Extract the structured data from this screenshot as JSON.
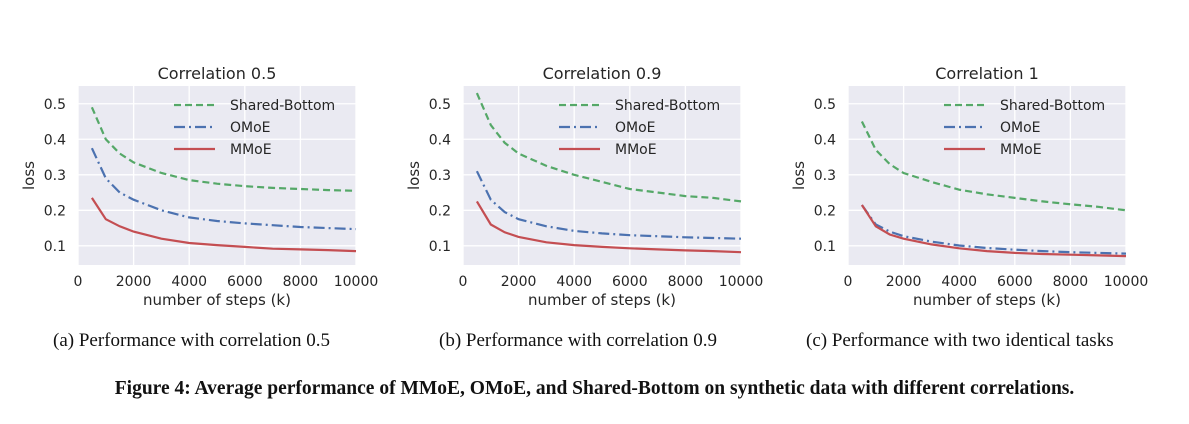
{
  "chart_data": [
    {
      "type": "line",
      "title": "Correlation 0.5",
      "xlabel": "number of steps (k)",
      "ylabel": "loss",
      "xlim": [
        0,
        10000
      ],
      "ylim": [
        0.046,
        0.55
      ],
      "xticks": [
        "0",
        "2000",
        "4000",
        "6000",
        "8000",
        "10000"
      ],
      "yticks": [
        "0.1",
        "0.2",
        "0.3",
        "0.4",
        "0.5"
      ],
      "grid": true,
      "legend": "top-right",
      "x": [
        500,
        1000,
        1500,
        2000,
        3000,
        4000,
        5000,
        6000,
        7000,
        8000,
        9000,
        10000
      ],
      "series": [
        {
          "name": "Shared-Bottom",
          "color": "#55a868",
          "style": "dashed",
          "values": [
            0.49,
            0.4,
            0.36,
            0.335,
            0.305,
            0.285,
            0.275,
            0.268,
            0.263,
            0.26,
            0.257,
            0.255
          ]
        },
        {
          "name": "OMoE",
          "color": "#4c72b0",
          "style": "dashdot",
          "values": [
            0.375,
            0.29,
            0.25,
            0.23,
            0.2,
            0.18,
            0.17,
            0.163,
            0.158,
            0.153,
            0.15,
            0.147
          ]
        },
        {
          "name": "MMoE",
          "color": "#c44e52",
          "style": "solid",
          "values": [
            0.235,
            0.175,
            0.155,
            0.14,
            0.12,
            0.108,
            0.102,
            0.097,
            0.092,
            0.09,
            0.088,
            0.085
          ]
        }
      ]
    },
    {
      "type": "line",
      "title": "Correlation 0.9",
      "xlabel": "number of steps (k)",
      "ylabel": "loss",
      "xlim": [
        0,
        10000
      ],
      "ylim": [
        0.046,
        0.55
      ],
      "xticks": [
        "0",
        "2000",
        "4000",
        "6000",
        "8000",
        "10000"
      ],
      "yticks": [
        "0.1",
        "0.2",
        "0.3",
        "0.4",
        "0.5"
      ],
      "grid": true,
      "legend": "top-right",
      "x": [
        500,
        1000,
        1500,
        2000,
        3000,
        4000,
        5000,
        6000,
        7000,
        8000,
        9000,
        10000
      ],
      "series": [
        {
          "name": "Shared-Bottom",
          "color": "#55a868",
          "style": "dashed",
          "values": [
            0.53,
            0.44,
            0.39,
            0.36,
            0.325,
            0.3,
            0.28,
            0.26,
            0.25,
            0.24,
            0.235,
            0.225
          ]
        },
        {
          "name": "OMoE",
          "color": "#4c72b0",
          "style": "dashdot",
          "values": [
            0.31,
            0.23,
            0.195,
            0.175,
            0.155,
            0.142,
            0.135,
            0.13,
            0.127,
            0.124,
            0.122,
            0.12
          ]
        },
        {
          "name": "MMoE",
          "color": "#c44e52",
          "style": "solid",
          "values": [
            0.225,
            0.16,
            0.138,
            0.125,
            0.11,
            0.102,
            0.097,
            0.093,
            0.09,
            0.087,
            0.085,
            0.082
          ]
        }
      ]
    },
    {
      "type": "line",
      "title": "Correlation 1",
      "xlabel": "number of steps (k)",
      "ylabel": "loss",
      "xlim": [
        0,
        10000
      ],
      "ylim": [
        0.046,
        0.55
      ],
      "xticks": [
        "0",
        "2000",
        "4000",
        "6000",
        "8000",
        "10000"
      ],
      "yticks": [
        "0.1",
        "0.2",
        "0.3",
        "0.4",
        "0.5"
      ],
      "grid": true,
      "legend": "top-right",
      "x": [
        500,
        1000,
        1500,
        2000,
        3000,
        4000,
        5000,
        6000,
        7000,
        8000,
        9000,
        10000
      ],
      "series": [
        {
          "name": "Shared-Bottom",
          "color": "#55a868",
          "style": "dashed",
          "values": [
            0.45,
            0.37,
            0.33,
            0.305,
            0.28,
            0.258,
            0.245,
            0.235,
            0.225,
            0.217,
            0.21,
            0.2
          ]
        },
        {
          "name": "OMoE",
          "color": "#4c72b0",
          "style": "dashdot",
          "values": [
            0.215,
            0.16,
            0.14,
            0.127,
            0.112,
            0.101,
            0.094,
            0.089,
            0.085,
            0.082,
            0.08,
            0.078
          ]
        },
        {
          "name": "MMoE",
          "color": "#c44e52",
          "style": "solid",
          "values": [
            0.215,
            0.155,
            0.132,
            0.12,
            0.104,
            0.093,
            0.085,
            0.08,
            0.077,
            0.075,
            0.073,
            0.071
          ]
        }
      ]
    }
  ],
  "subcaptions": [
    "(a) Performance with correlation 0.5",
    "(b) Performance with correlation 0.9",
    "(c) Performance with two identical tasks"
  ],
  "caption": "Figure 4: Average performance of MMoE, OMoE, and Shared-Bottom on synthetic data with different correlations."
}
